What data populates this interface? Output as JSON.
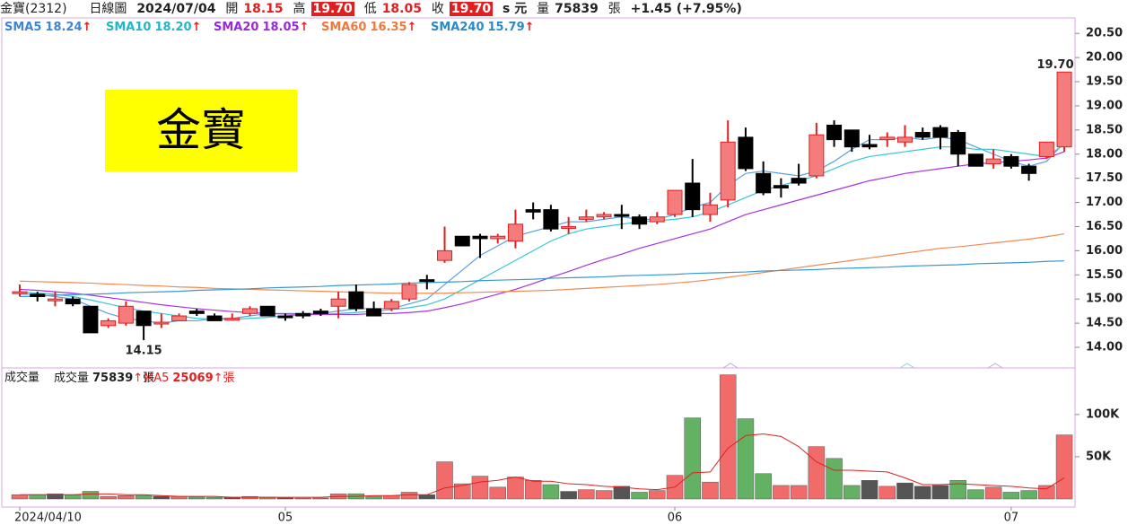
{
  "header": {
    "name": "金寶(2312)",
    "chart_kind": "日線圖",
    "date": "2024/07/04",
    "open_label": "開",
    "open": "18.15",
    "high_label": "高",
    "high": "19.70",
    "low_label": "低",
    "low": "18.05",
    "close_label": "收",
    "close": "19.70",
    "unit": "s 元",
    "volume_label": "量",
    "volume": "75839",
    "volume_unit": "張",
    "change": "+1.45 (+7.95%)"
  },
  "chart_data": [
    {
      "type": "candlestick",
      "annotation": "金寶",
      "high_label": "19.70",
      "low_label": "14.15",
      "up_color": "#f47c7c",
      "up_edge": "#e02020",
      "down_color": "#000000",
      "ylim": [
        13.61,
        20.82
      ],
      "yticks": [
        {
          "value": 14,
          "label": "14.00"
        },
        {
          "value": 14.5,
          "label": "14.50"
        },
        {
          "value": 15,
          "label": "15.00"
        },
        {
          "value": 15.5,
          "label": "15.50"
        },
        {
          "value": 16,
          "label": "16.00"
        },
        {
          "value": 16.5,
          "label": "16.50"
        },
        {
          "value": 17,
          "label": "17.00"
        },
        {
          "value": 17.5,
          "label": "17.50"
        },
        {
          "value": 18,
          "label": "18.00"
        },
        {
          "value": 18.5,
          "label": "18.50"
        },
        {
          "value": 19,
          "label": "19.00"
        },
        {
          "value": 19.5,
          "label": "19.50"
        },
        {
          "value": 20,
          "label": "20.00"
        },
        {
          "value": 20.5,
          "label": "20.50"
        }
      ],
      "open": [
        15.15,
        15.1,
        15.0,
        15.0,
        14.85,
        14.45,
        14.5,
        14.75,
        14.5,
        14.55,
        14.75,
        14.65,
        14.6,
        14.7,
        14.85,
        14.65,
        14.7,
        14.75,
        14.85,
        15.15,
        14.8,
        14.8,
        15.0,
        15.4,
        15.8,
        16.3,
        16.3,
        16.25,
        16.2,
        16.85,
        16.85,
        16.5,
        16.65,
        16.7,
        16.75,
        16.7,
        16.6,
        16.75,
        17.4,
        16.75,
        17.05,
        18.35,
        17.6,
        17.35,
        17.5,
        17.55,
        18.6,
        18.5,
        18.2,
        18.3,
        18.25,
        18.45,
        18.55,
        18.45,
        18.0,
        17.8,
        17.95,
        17.75,
        17.95,
        18.15
      ],
      "high": [
        15.3,
        15.15,
        15.15,
        15.05,
        14.85,
        14.6,
        14.95,
        14.75,
        14.7,
        14.7,
        14.8,
        14.7,
        14.7,
        14.85,
        14.85,
        14.7,
        14.75,
        14.8,
        15.15,
        15.3,
        14.95,
        15.0,
        15.35,
        15.5,
        16.5,
        16.3,
        16.35,
        16.35,
        16.85,
        17.0,
        16.95,
        16.7,
        16.85,
        16.8,
        16.95,
        16.75,
        16.8,
        17.25,
        17.9,
        17.2,
        18.7,
        18.55,
        17.85,
        17.5,
        17.8,
        18.65,
        18.7,
        18.5,
        18.4,
        18.45,
        18.6,
        18.55,
        18.6,
        18.5,
        18.0,
        18.1,
        18.0,
        17.8,
        18.25,
        19.7
      ],
      "low": [
        15.05,
        14.95,
        14.85,
        14.85,
        14.3,
        14.4,
        14.45,
        14.15,
        14.4,
        14.55,
        14.65,
        14.55,
        14.55,
        14.65,
        14.65,
        14.55,
        14.6,
        14.65,
        14.6,
        14.75,
        14.65,
        14.75,
        14.95,
        15.2,
        15.75,
        16.1,
        15.85,
        16.15,
        16.05,
        16.65,
        16.4,
        16.35,
        16.6,
        16.65,
        16.45,
        16.45,
        16.55,
        16.7,
        16.7,
        16.6,
        16.9,
        17.65,
        17.15,
        17.1,
        17.35,
        17.5,
        18.15,
        18.05,
        18.1,
        18.15,
        18.15,
        18.3,
        18.1,
        17.75,
        17.75,
        17.7,
        17.7,
        17.45,
        17.9,
        18.05
      ],
      "close": [
        15.15,
        15.05,
        15.0,
        14.9,
        14.3,
        14.55,
        14.85,
        14.45,
        14.52,
        14.65,
        14.7,
        14.55,
        14.6,
        14.8,
        14.65,
        14.62,
        14.65,
        14.7,
        15.0,
        14.8,
        14.65,
        14.95,
        15.3,
        15.38,
        16.0,
        16.1,
        16.25,
        16.3,
        16.55,
        16.8,
        16.45,
        16.5,
        16.7,
        16.75,
        16.72,
        16.55,
        16.7,
        17.25,
        16.85,
        16.95,
        18.25,
        17.7,
        17.2,
        17.3,
        17.4,
        18.4,
        18.3,
        18.15,
        18.15,
        18.35,
        18.35,
        18.35,
        18.35,
        18.0,
        17.75,
        17.9,
        17.75,
        17.6,
        18.25,
        19.7
      ],
      "series": [
        {
          "name": "SMA5",
          "legend_value": "18.24",
          "trend": "↑",
          "color": "#3d85d6",
          "line_color": "#5aa0e0",
          "values": [
            15.1,
            15.1,
            15.05,
            15.0,
            14.85,
            14.7,
            14.6,
            14.55,
            14.5,
            14.55,
            14.55,
            14.6,
            14.6,
            14.65,
            14.7,
            14.7,
            14.7,
            14.7,
            14.75,
            14.8,
            14.8,
            14.8,
            14.9,
            15.0,
            15.3,
            15.6,
            15.9,
            16.1,
            16.3,
            16.4,
            16.5,
            16.6,
            16.6,
            16.65,
            16.7,
            16.65,
            16.65,
            16.75,
            16.9,
            17.0,
            17.35,
            17.6,
            17.65,
            17.6,
            17.55,
            17.65,
            17.85,
            18.1,
            18.3,
            18.3,
            18.35,
            18.3,
            18.35,
            18.3,
            18.15,
            18.0,
            17.85,
            17.75,
            17.85,
            18.24
          ]
        },
        {
          "name": "SMA10",
          "legend_value": "18.20",
          "trend": "↑",
          "color": "#22b4c8",
          "line_color": "#36c6d6",
          "values": [
            15.15,
            15.12,
            15.1,
            15.05,
            14.98,
            14.9,
            14.82,
            14.75,
            14.7,
            14.65,
            14.6,
            14.58,
            14.58,
            14.6,
            14.62,
            14.65,
            14.67,
            14.68,
            14.7,
            14.72,
            14.75,
            14.78,
            14.82,
            14.88,
            15.0,
            15.2,
            15.4,
            15.6,
            15.8,
            16.0,
            16.2,
            16.35,
            16.45,
            16.5,
            16.55,
            16.6,
            16.62,
            16.65,
            16.7,
            16.8,
            16.95,
            17.1,
            17.25,
            17.35,
            17.45,
            17.55,
            17.7,
            17.85,
            17.95,
            18.0,
            18.05,
            18.1,
            18.15,
            18.15,
            18.1,
            18.1,
            18.05,
            18.0,
            17.95,
            18.2
          ]
        },
        {
          "name": "SMA20",
          "legend_value": "18.05",
          "trend": "↑",
          "color": "#9c27d8",
          "line_color": "#a632e0",
          "values": [
            15.2,
            15.18,
            15.15,
            15.12,
            15.08,
            15.03,
            14.98,
            14.93,
            14.88,
            14.84,
            14.8,
            14.77,
            14.74,
            14.72,
            14.7,
            14.69,
            14.68,
            14.68,
            14.68,
            14.68,
            14.7,
            14.7,
            14.72,
            14.75,
            14.82,
            14.9,
            15.0,
            15.1,
            15.2,
            15.32,
            15.45,
            15.57,
            15.7,
            15.82,
            15.93,
            16.05,
            16.15,
            16.25,
            16.35,
            16.45,
            16.6,
            16.75,
            16.85,
            16.95,
            17.05,
            17.15,
            17.25,
            17.35,
            17.45,
            17.52,
            17.6,
            17.65,
            17.7,
            17.75,
            17.8,
            17.82,
            17.85,
            17.88,
            17.92,
            18.05
          ]
        },
        {
          "name": "SMA60",
          "legend_value": "16.35",
          "trend": "↑",
          "color": "#f0783c",
          "line_color": "#f08a50",
          "values": [
            15.37,
            15.36,
            15.35,
            15.34,
            15.33,
            15.31,
            15.3,
            15.28,
            15.27,
            15.25,
            15.24,
            15.22,
            15.21,
            15.2,
            15.19,
            15.18,
            15.17,
            15.16,
            15.15,
            15.14,
            15.13,
            15.12,
            15.12,
            15.12,
            15.12,
            15.13,
            15.14,
            15.15,
            15.16,
            15.17,
            15.18,
            15.2,
            15.22,
            15.24,
            15.26,
            15.28,
            15.3,
            15.33,
            15.36,
            15.4,
            15.45,
            15.5,
            15.55,
            15.6,
            15.65,
            15.7,
            15.75,
            15.8,
            15.85,
            15.9,
            15.95,
            16.0,
            16.05,
            16.08,
            16.12,
            16.16,
            16.2,
            16.24,
            16.29,
            16.35
          ]
        },
        {
          "name": "SMA240",
          "legend_value": "15.79",
          "trend": "↑",
          "color": "#2a8ac8",
          "line_color": "#3a98d0",
          "values": [
            15.05,
            15.06,
            15.08,
            15.09,
            15.1,
            15.11,
            15.13,
            15.14,
            15.15,
            15.16,
            15.18,
            15.19,
            15.2,
            15.21,
            15.23,
            15.24,
            15.25,
            15.26,
            15.28,
            15.29,
            15.3,
            15.31,
            15.33,
            15.34,
            15.35,
            15.36,
            15.38,
            15.39,
            15.4,
            15.41,
            15.43,
            15.44,
            15.45,
            15.46,
            15.48,
            15.49,
            15.5,
            15.51,
            15.53,
            15.54,
            15.55,
            15.56,
            15.58,
            15.59,
            15.6,
            15.61,
            15.63,
            15.64,
            15.65,
            15.66,
            15.68,
            15.69,
            15.7,
            15.71,
            15.73,
            15.74,
            15.75,
            15.76,
            15.78,
            15.79
          ]
        }
      ]
    },
    {
      "type": "bar",
      "title": "成交量",
      "legend": [
        {
          "name": "成交量",
          "value": "75839",
          "trend": "↑",
          "unit": "張",
          "color": "#222222"
        },
        {
          "name": "MA5",
          "value": "25069",
          "trend": "↑",
          "unit": "張",
          "color": "#e02020"
        }
      ],
      "ylim": [
        0,
        153000
      ],
      "yticks": [
        {
          "value": 50000,
          "label": "50K"
        },
        {
          "value": 100000,
          "label": "100K"
        }
      ],
      "categories": [
        "2024/04/10",
        null,
        null,
        null,
        null,
        null,
        null,
        null,
        null,
        null,
        null,
        null,
        null,
        null,
        null,
        "05",
        null,
        null,
        null,
        null,
        null,
        null,
        null,
        null,
        null,
        null,
        null,
        null,
        null,
        null,
        null,
        null,
        null,
        null,
        null,
        null,
        null,
        "06",
        null,
        null,
        null,
        null,
        null,
        null,
        null,
        null,
        null,
        null,
        null,
        null,
        null,
        null,
        null,
        null,
        null,
        null,
        "07",
        null,
        null,
        null
      ],
      "values": [
        5000,
        5200,
        6000,
        4800,
        9000,
        3000,
        4000,
        4200,
        3200,
        3000,
        2200,
        2000,
        2000,
        3000,
        2200,
        1200,
        1000,
        1100,
        6000,
        6200,
        3200,
        4000,
        8000,
        5000,
        44000,
        18000,
        27000,
        14000,
        26000,
        22000,
        17000,
        9000,
        11000,
        10000,
        15000,
        8000,
        10000,
        28000,
        96000,
        20000,
        147000,
        95000,
        30000,
        16000,
        16000,
        62000,
        48000,
        16000,
        22000,
        15000,
        19000,
        15000,
        16000,
        22000,
        11000,
        14000,
        8000,
        10000,
        16000,
        75839
      ],
      "colors": [
        "#f26b6b",
        "#63b163",
        "#555555",
        "#63b163",
        "#63b163",
        "#f26b6b",
        "#f26b6b",
        "#63b163",
        "#555555",
        "#f26b6b",
        "#63b163",
        "#63b163",
        "#555555",
        "#f26b6b",
        "#63b163",
        "#555555",
        "#63b163",
        "#63b163",
        "#f26b6b",
        "#63b163",
        "#63b163",
        "#f26b6b",
        "#f26b6b",
        "#555555",
        "#f26b6b",
        "#f26b6b",
        "#f26b6b",
        "#f26b6b",
        "#f26b6b",
        "#f26b6b",
        "#63b163",
        "#555555",
        "#f26b6b",
        "#f26b6b",
        "#555555",
        "#63b163",
        "#f26b6b",
        "#f26b6b",
        "#63b163",
        "#f26b6b",
        "#f26b6b",
        "#63b163",
        "#63b163",
        "#f26b6b",
        "#f26b6b",
        "#f26b6b",
        "#63b163",
        "#63b163",
        "#555555",
        "#f26b6b",
        "#555555",
        "#555555",
        "#555555",
        "#63b163",
        "#63b163",
        "#f26b6b",
        "#63b163",
        "#63b163",
        "#f26b6b",
        "#f26b6b"
      ],
      "ma_line": {
        "name": "MA5",
        "color": "#e02020",
        "values": [
          5000,
          5000,
          5000,
          5000,
          6000,
          6000,
          5000,
          5000,
          4000,
          3000,
          3000,
          3000,
          2000,
          2000,
          2000,
          2000,
          2000,
          2000,
          3000,
          3000,
          4000,
          4000,
          5000,
          5000,
          13000,
          16000,
          20000,
          22000,
          26000,
          21000,
          21000,
          18000,
          17000,
          15000,
          14000,
          12000,
          11000,
          14000,
          31000,
          32000,
          60000,
          75000,
          77000,
          74000,
          62000,
          44000,
          34000,
          34000,
          33000,
          32000,
          25000,
          17000,
          17000,
          18000,
          17000,
          16000,
          15000,
          13000,
          12000,
          25069
        ]
      }
    }
  ]
}
